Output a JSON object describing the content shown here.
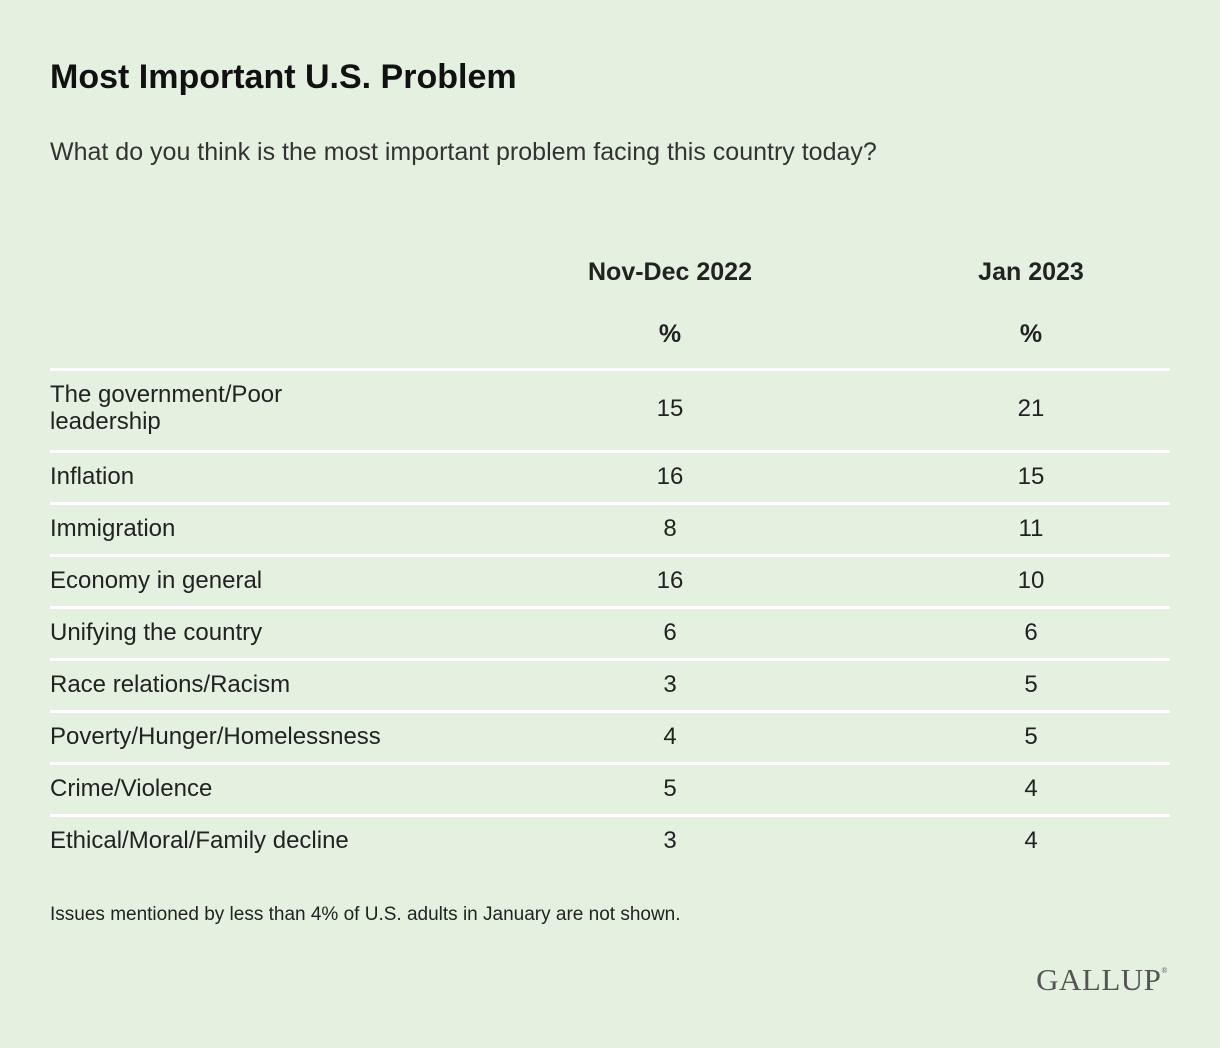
{
  "chart_data": {
    "type": "table",
    "title": "Most Important U.S. Problem",
    "subtitle": "What do you think is the most important problem facing this country today?",
    "columns": [
      "Nov-Dec 2022",
      "Jan 2023"
    ],
    "unit": "%",
    "rows": [
      {
        "label": "The government/Poor leadership",
        "values": [
          15,
          21
        ]
      },
      {
        "label": "Inflation",
        "values": [
          16,
          15
        ]
      },
      {
        "label": "Immigration",
        "values": [
          8,
          11
        ]
      },
      {
        "label": "Economy in general",
        "values": [
          16,
          10
        ]
      },
      {
        "label": "Unifying the country",
        "values": [
          6,
          6
        ]
      },
      {
        "label": "Race relations/Racism",
        "values": [
          3,
          5
        ]
      },
      {
        "label": "Poverty/Hunger/Homelessness",
        "values": [
          4,
          5
        ]
      },
      {
        "label": "Crime/Violence",
        "values": [
          5,
          4
        ]
      },
      {
        "label": "Ethical/Moral/Family decline",
        "values": [
          3,
          4
        ]
      }
    ],
    "note": "Issues mentioned by less than 4% of U.S. adults in January are not shown."
  },
  "logo": "GALLUP",
  "colors": {
    "background": "#e4f1e1",
    "divider": "#ffffff"
  }
}
